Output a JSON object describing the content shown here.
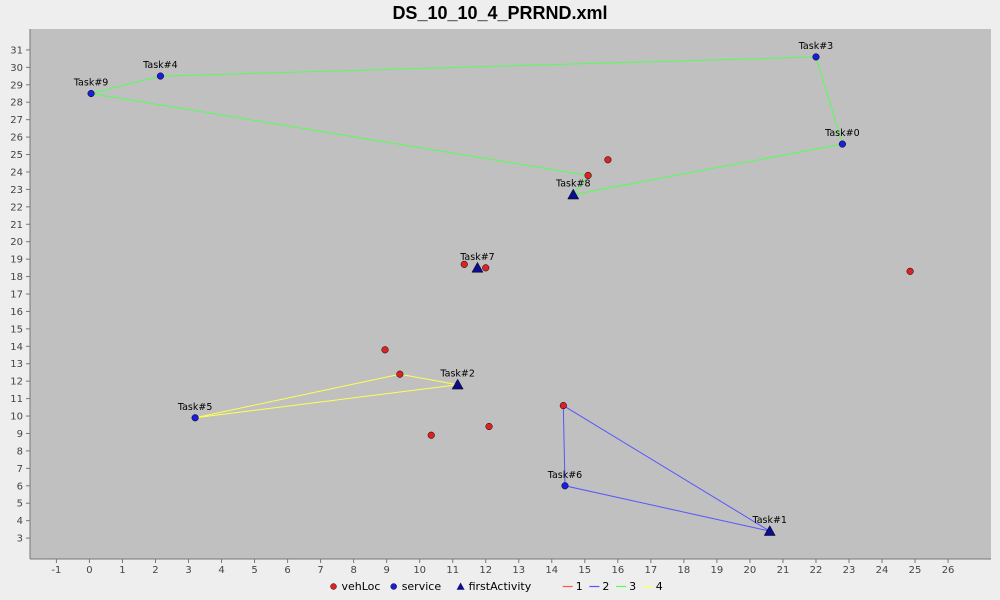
{
  "chart_data": {
    "type": "scatter",
    "title": "DS_10_10_4_PRRND.xml",
    "xlabel": "",
    "ylabel": "",
    "xlim": [
      -1.8,
      27.3
    ],
    "ylim": [
      1.8,
      32.2
    ],
    "x_ticks": [
      -1,
      0,
      1,
      2,
      3,
      4,
      5,
      6,
      7,
      8,
      9,
      10,
      11,
      12,
      13,
      14,
      15,
      16,
      17,
      18,
      19,
      20,
      21,
      22,
      23,
      24,
      25,
      26
    ],
    "y_ticks": [
      3,
      4,
      5,
      6,
      7,
      8,
      9,
      10,
      11,
      12,
      13,
      14,
      15,
      16,
      17,
      18,
      19,
      20,
      21,
      22,
      23,
      24,
      25,
      26,
      27,
      28,
      29,
      30,
      31
    ],
    "legend_position": "bottom",
    "colors": {
      "plot_background": "#c0c0c0",
      "vehLoc": "#dd2222",
      "service": "#1c1cdd",
      "firstActivity": "#0d0d8c",
      "route_1": "#ff5555",
      "route_2": "#5555ff",
      "route_3": "#55ff55",
      "route_4": "#ffff55"
    },
    "series": [
      {
        "name": "vehLoc",
        "marker": "circle",
        "points": [
          {
            "x": 15.1,
            "y": 23.8
          },
          {
            "x": 15.7,
            "y": 24.7
          },
          {
            "x": 11.35,
            "y": 18.7
          },
          {
            "x": 12.0,
            "y": 18.5
          },
          {
            "x": 24.85,
            "y": 18.3
          },
          {
            "x": 8.95,
            "y": 13.8
          },
          {
            "x": 9.4,
            "y": 12.4
          },
          {
            "x": 14.35,
            "y": 10.6
          },
          {
            "x": 12.1,
            "y": 9.4
          },
          {
            "x": 10.35,
            "y": 8.9
          }
        ]
      },
      {
        "name": "service",
        "marker": "circle",
        "points": [
          {
            "x": 22.8,
            "y": 25.6,
            "label": "Task#0"
          },
          {
            "x": 22.0,
            "y": 30.6,
            "label": "Task#3"
          },
          {
            "x": 2.15,
            "y": 29.5,
            "label": "Task#4"
          },
          {
            "x": 0.05,
            "y": 28.5,
            "label": "Task#9"
          },
          {
            "x": 3.2,
            "y": 9.9,
            "label": "Task#5"
          },
          {
            "x": 14.4,
            "y": 6.0,
            "label": "Task#6"
          }
        ]
      },
      {
        "name": "firstActivity",
        "marker": "triangle",
        "points": [
          {
            "x": 14.65,
            "y": 22.7,
            "label": "Task#8"
          },
          {
            "x": 11.75,
            "y": 18.5,
            "label": "Task#7"
          },
          {
            "x": 11.15,
            "y": 11.8,
            "label": "Task#2"
          },
          {
            "x": 20.6,
            "y": 3.4,
            "label": "Task#1"
          }
        ]
      },
      {
        "name": "1",
        "marker": "line",
        "points": []
      },
      {
        "name": "2",
        "marker": "line",
        "points": [
          {
            "x": 14.35,
            "y": 10.6
          },
          {
            "x": 20.6,
            "y": 3.4
          },
          {
            "x": 14.4,
            "y": 6.0
          },
          {
            "x": 14.35,
            "y": 10.6
          }
        ]
      },
      {
        "name": "3",
        "marker": "line",
        "points": [
          {
            "x": 15.1,
            "y": 23.8
          },
          {
            "x": 0.05,
            "y": 28.5
          },
          {
            "x": 2.15,
            "y": 29.5
          },
          {
            "x": 22.0,
            "y": 30.6
          },
          {
            "x": 22.8,
            "y": 25.6
          },
          {
            "x": 14.65,
            "y": 22.7
          },
          {
            "x": 15.1,
            "y": 23.8
          }
        ]
      },
      {
        "name": "4",
        "marker": "line",
        "points": [
          {
            "x": 9.4,
            "y": 12.4
          },
          {
            "x": 11.15,
            "y": 11.8
          },
          {
            "x": 3.2,
            "y": 9.9
          },
          {
            "x": 9.4,
            "y": 12.4
          }
        ]
      }
    ],
    "legend": [
      {
        "name": "vehLoc",
        "symbol": "circle",
        "color_key": "vehLoc"
      },
      {
        "name": "service",
        "symbol": "circle",
        "color_key": "service"
      },
      {
        "name": "firstActivity",
        "symbol": "triangle",
        "color_key": "firstActivity"
      },
      {
        "name": "1",
        "symbol": "line",
        "color_key": "route_1"
      },
      {
        "name": "2",
        "symbol": "line",
        "color_key": "route_2"
      },
      {
        "name": "3",
        "symbol": "line",
        "color_key": "route_3"
      },
      {
        "name": "4",
        "symbol": "line",
        "color_key": "route_4"
      }
    ]
  }
}
